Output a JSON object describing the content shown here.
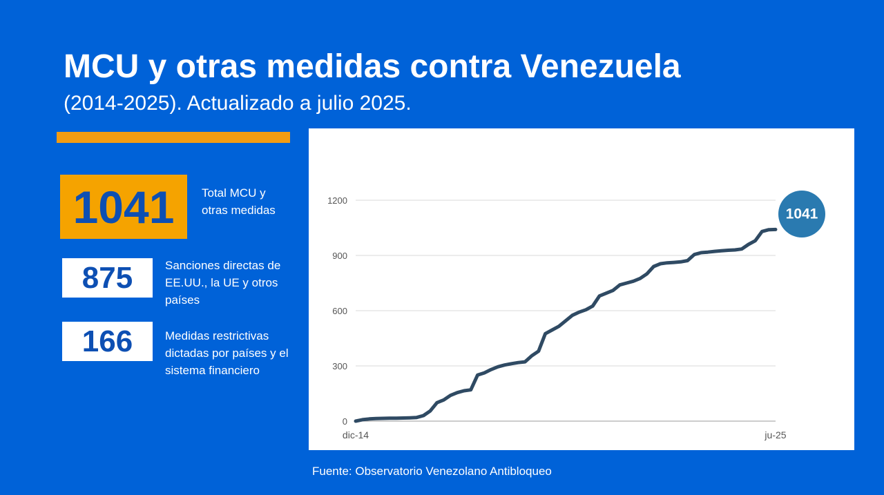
{
  "header": {
    "title": "MCU y otras medidas contra Venezuela",
    "subtitle": "(2014-2025). Actualizado a julio 2025."
  },
  "stats": {
    "total": {
      "value": "1041",
      "label": "Total MCU y otras medidas"
    },
    "direct": {
      "value": "875",
      "label": "Sanciones directas de EE.UU., la UE y otros países"
    },
    "restrictive": {
      "value": "166",
      "label": "Medidas restrictivas dictadas por países y el sistema financiero"
    }
  },
  "source": "Fuente: Observatorio Venezolano Antibloqueo",
  "colors": {
    "background": "#0062d8",
    "accent_orange": "#f5a300",
    "line": "#2f4a63",
    "end_badge": "#2a7ab0"
  },
  "chart_data": {
    "type": "line",
    "title": "",
    "xlabel": "",
    "ylabel": "",
    "x_tick_labels": [
      "dic-14",
      "ju-25"
    ],
    "y_ticks": [
      0,
      300,
      600,
      900,
      1200
    ],
    "ylim": [
      0,
      1200
    ],
    "grid": true,
    "end_label": "1041",
    "series": [
      {
        "values": [
          0,
          8,
          12,
          14,
          15,
          16,
          16,
          17,
          18,
          20,
          30,
          55,
          100,
          115,
          140,
          155,
          165,
          170,
          250,
          262,
          280,
          295,
          305,
          312,
          318,
          322,
          355,
          380,
          475,
          495,
          515,
          545,
          575,
          592,
          605,
          625,
          680,
          695,
          710,
          740,
          750,
          760,
          775,
          800,
          840,
          855,
          860,
          862,
          865,
          872,
          905,
          915,
          918,
          922,
          925,
          928,
          930,
          935,
          960,
          980,
          1030,
          1040,
          1041
        ]
      }
    ]
  }
}
